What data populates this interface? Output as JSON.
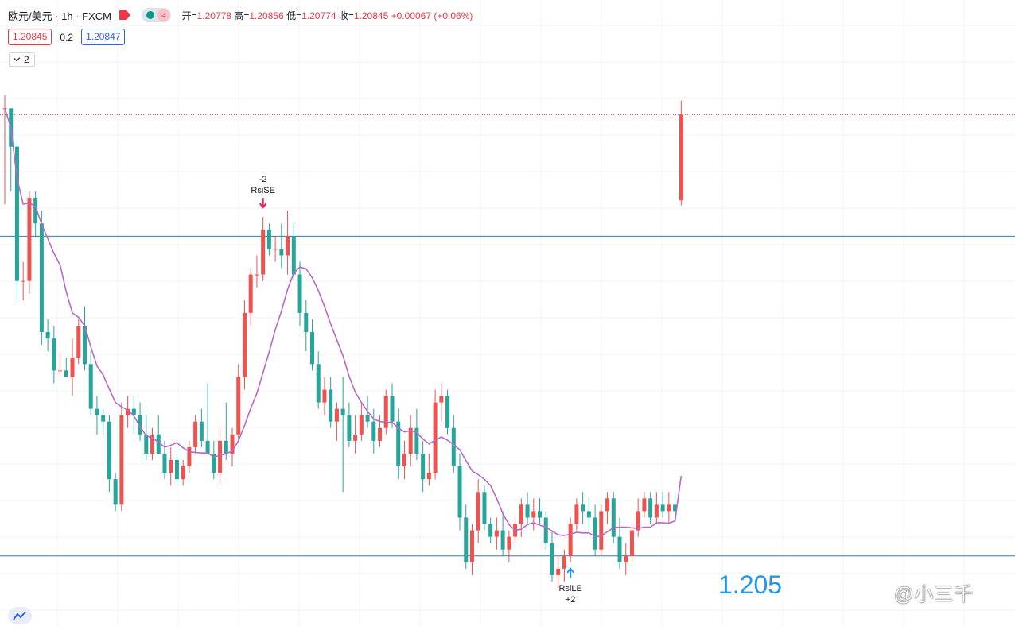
{
  "header": {
    "symbol": "欧元/美元 · 1h · FXCM",
    "ohlc": [
      {
        "key": "开=",
        "value": "1.20778"
      },
      {
        "key": "高=",
        "value": "1.20856"
      },
      {
        "key": "低=",
        "value": "1.20774"
      },
      {
        "key": "收=",
        "value": "1.20845"
      }
    ],
    "change": "+0.00067 (+0.06%)"
  },
  "trade": {
    "sell": "1.20845",
    "spread": "0.2",
    "buy": "1.20847"
  },
  "collapse_label": "2",
  "big_price_label": "1.205",
  "watermark": "@小三千",
  "colors": {
    "up": "#ef5350",
    "down": "#26a69a",
    "ma": "#ba68c8",
    "hline": "#2a7bb7",
    "last": "#f23645",
    "grid": "#f0f3fa"
  },
  "chart_data": {
    "type": "candlestick",
    "ylim": [
      1.20475,
      1.20885
    ],
    "hlines": [
      1.2075,
      1.205
    ],
    "last_price": 1.20845,
    "signals": [
      {
        "label": "RsiSE",
        "qty": "-2",
        "index": 42,
        "dir": "down"
      },
      {
        "label": "RsiLE",
        "qty": "+2",
        "index": 92,
        "dir": "up"
      }
    ],
    "ohlc": [
      [
        1.2085,
        1.2086,
        1.20775,
        1.2085
      ],
      [
        1.2085,
        1.2085,
        1.20785,
        1.2082
      ],
      [
        1.2082,
        1.20825,
        1.207,
        1.20715
      ],
      [
        1.20715,
        1.2073,
        1.207,
        1.20715
      ],
      [
        1.20715,
        1.20785,
        1.20705,
        1.2078
      ],
      [
        1.2078,
        1.20785,
        1.2075,
        1.2076
      ],
      [
        1.2076,
        1.2077,
        1.20665,
        1.20675
      ],
      [
        1.20675,
        1.20685,
        1.2066,
        1.2067
      ],
      [
        1.2067,
        1.2068,
        1.20635,
        1.20645
      ],
      [
        1.20645,
        1.2066,
        1.2064,
        1.20645
      ],
      [
        1.20645,
        1.20655,
        1.2064,
        1.2064
      ],
      [
        1.2064,
        1.2067,
        1.20625,
        1.20655
      ],
      [
        1.20655,
        1.20685,
        1.2065,
        1.2068
      ],
      [
        1.2068,
        1.20695,
        1.20645,
        1.2065
      ],
      [
        1.2065,
        1.2066,
        1.2061,
        1.20615
      ],
      [
        1.20615,
        1.20625,
        1.20595,
        1.2061
      ],
      [
        1.2061,
        1.20615,
        1.20595,
        1.20605
      ],
      [
        1.20605,
        1.2061,
        1.2055,
        1.2056
      ],
      [
        1.2056,
        1.20565,
        1.20535,
        1.2054
      ],
      [
        1.2054,
        1.2062,
        1.20535,
        1.2061
      ],
      [
        1.2061,
        1.20625,
        1.206,
        1.20615
      ],
      [
        1.20615,
        1.20625,
        1.20595,
        1.2061
      ],
      [
        1.2061,
        1.2062,
        1.2059,
        1.20595
      ],
      [
        1.20595,
        1.2061,
        1.20575,
        1.2058
      ],
      [
        1.2058,
        1.206,
        1.20575,
        1.20595
      ],
      [
        1.20595,
        1.2061,
        1.2058,
        1.2058
      ],
      [
        1.2058,
        1.2059,
        1.2056,
        1.20565
      ],
      [
        1.20565,
        1.20585,
        1.20555,
        1.20575
      ],
      [
        1.20575,
        1.2058,
        1.20555,
        1.2056
      ],
      [
        1.2056,
        1.20575,
        1.20555,
        1.2057
      ],
      [
        1.2057,
        1.2059,
        1.20565,
        1.20585
      ],
      [
        1.20585,
        1.2061,
        1.2058,
        1.20605
      ],
      [
        1.20605,
        1.20615,
        1.20585,
        1.2059
      ],
      [
        1.2059,
        1.20635,
        1.2058,
        1.2058
      ],
      [
        1.2058,
        1.2059,
        1.2056,
        1.20565
      ],
      [
        1.20565,
        1.206,
        1.20555,
        1.2059
      ],
      [
        1.2059,
        1.2062,
        1.20575,
        1.2058
      ],
      [
        1.2058,
        1.206,
        1.2057,
        1.20595
      ],
      [
        1.20595,
        1.2065,
        1.2059,
        1.2064
      ],
      [
        1.2064,
        1.207,
        1.2063,
        1.2069
      ],
      [
        1.2069,
        1.20725,
        1.2068,
        1.2072
      ],
      [
        1.2072,
        1.20735,
        1.2071,
        1.2072
      ],
      [
        1.2072,
        1.20765,
        1.20715,
        1.20755
      ],
      [
        1.20755,
        1.2076,
        1.20735,
        1.2074
      ],
      [
        1.2074,
        1.2075,
        1.2073,
        1.2074
      ],
      [
        1.2074,
        1.2076,
        1.20725,
        1.20735
      ],
      [
        1.20735,
        1.2077,
        1.2072,
        1.2075
      ],
      [
        1.2075,
        1.2076,
        1.20715,
        1.2072
      ],
      [
        1.2072,
        1.2073,
        1.2068,
        1.2069
      ],
      [
        1.2069,
        1.207,
        1.2066,
        1.20675
      ],
      [
        1.20675,
        1.20685,
        1.20645,
        1.2065
      ],
      [
        1.2065,
        1.2066,
        1.20615,
        1.2062
      ],
      [
        1.2062,
        1.2064,
        1.2061,
        1.2063
      ],
      [
        1.2063,
        1.2064,
        1.206,
        1.20605
      ],
      [
        1.20605,
        1.2062,
        1.2059,
        1.20615
      ],
      [
        1.20615,
        1.2064,
        1.2055,
        1.2061
      ],
      [
        1.2061,
        1.2062,
        1.20585,
        1.2059
      ],
      [
        1.2059,
        1.2061,
        1.2058,
        1.20595
      ],
      [
        1.20595,
        1.2062,
        1.2059,
        1.2061
      ],
      [
        1.2061,
        1.20625,
        1.206,
        1.20605
      ],
      [
        1.20605,
        1.20615,
        1.2058,
        1.2059
      ],
      [
        1.2059,
        1.2061,
        1.20585,
        1.206
      ],
      [
        1.206,
        1.2063,
        1.20595,
        1.20625
      ],
      [
        1.20625,
        1.20635,
        1.206,
        1.20605
      ],
      [
        1.20605,
        1.20615,
        1.2056,
        1.2057
      ],
      [
        1.2057,
        1.2059,
        1.2056,
        1.2058
      ],
      [
        1.2058,
        1.2061,
        1.2057,
        1.206
      ],
      [
        1.206,
        1.20615,
        1.20575,
        1.2058
      ],
      [
        1.2058,
        1.2059,
        1.2055,
        1.2056
      ],
      [
        1.2056,
        1.2058,
        1.20555,
        1.20565
      ],
      [
        1.20565,
        1.2063,
        1.2056,
        1.2062
      ],
      [
        1.2062,
        1.20635,
        1.20605,
        1.20625
      ],
      [
        1.20625,
        1.2063,
        1.20595,
        1.206
      ],
      [
        1.206,
        1.2061,
        1.20565,
        1.2057
      ],
      [
        1.2057,
        1.2058,
        1.2052,
        1.2053
      ],
      [
        1.2053,
        1.2054,
        1.2049,
        1.20495
      ],
      [
        1.20495,
        1.20525,
        1.20485,
        1.2052
      ],
      [
        1.2052,
        1.2056,
        1.2051,
        1.2055
      ],
      [
        1.2055,
        1.20555,
        1.2052,
        1.20525
      ],
      [
        1.20525,
        1.2053,
        1.2051,
        1.20515
      ],
      [
        1.20515,
        1.2053,
        1.20505,
        1.2052
      ],
      [
        1.2052,
        1.20535,
        1.205,
        1.20505
      ],
      [
        1.20505,
        1.2052,
        1.20495,
        1.20515
      ],
      [
        1.20515,
        1.2053,
        1.2051,
        1.20525
      ],
      [
        1.20525,
        1.20545,
        1.20515,
        1.2054
      ],
      [
        1.2054,
        1.2055,
        1.20525,
        1.2053
      ],
      [
        1.2053,
        1.20545,
        1.2052,
        1.20535
      ],
      [
        1.20535,
        1.20545,
        1.20525,
        1.2053
      ],
      [
        1.2053,
        1.20535,
        1.20505,
        1.2051
      ],
      [
        1.2051,
        1.2052,
        1.2048,
        1.20485
      ],
      [
        1.20485,
        1.205,
        1.20475,
        1.2049
      ],
      [
        1.2049,
        1.20505,
        1.2048,
        1.205
      ],
      [
        1.205,
        1.2053,
        1.20495,
        1.20525
      ],
      [
        1.20525,
        1.20545,
        1.2052,
        1.2054
      ],
      [
        1.2054,
        1.2055,
        1.20525,
        1.20535
      ],
      [
        1.20535,
        1.20545,
        1.2052,
        1.2053
      ],
      [
        1.2053,
        1.2054,
        1.205,
        1.20505
      ],
      [
        1.20505,
        1.2054,
        1.205,
        1.20535
      ],
      [
        1.20535,
        1.2055,
        1.20525,
        1.20545
      ],
      [
        1.20545,
        1.2055,
        1.2051,
        1.20515
      ],
      [
        1.20515,
        1.2053,
        1.2049,
        1.20495
      ],
      [
        1.20495,
        1.2051,
        1.20485,
        1.205
      ],
      [
        1.205,
        1.20525,
        1.20495,
        1.2052
      ],
      [
        1.2052,
        1.20545,
        1.20515,
        1.20535
      ],
      [
        1.20535,
        1.2055,
        1.2053,
        1.20545
      ],
      [
        1.20545,
        1.2055,
        1.20525,
        1.2053
      ],
      [
        1.2053,
        1.2055,
        1.20525,
        1.2054
      ],
      [
        1.2054,
        1.2055,
        1.2053,
        1.20535
      ],
      [
        1.20535,
        1.2055,
        1.20525,
        1.2054
      ],
      [
        1.2054,
        1.2055,
        1.2053,
        1.20535
      ],
      [
        1.20778,
        1.20856,
        1.20774,
        1.20845
      ]
    ]
  }
}
